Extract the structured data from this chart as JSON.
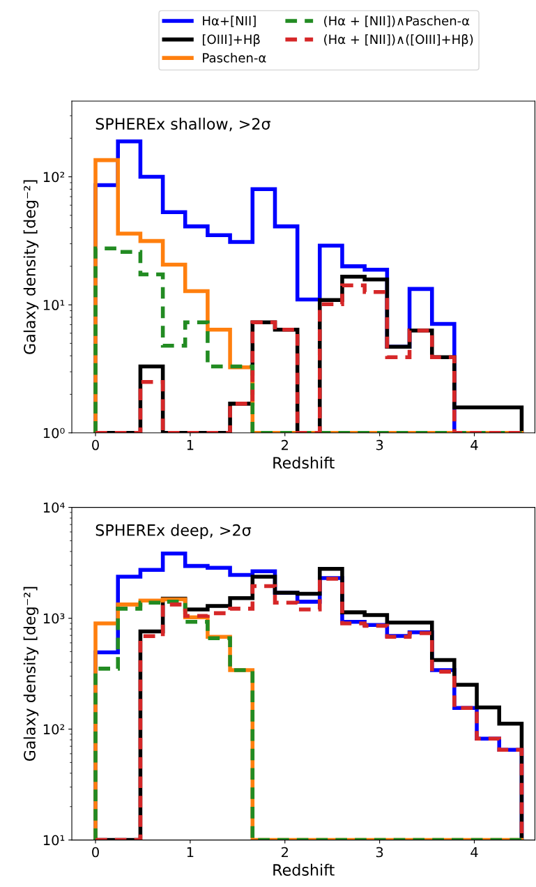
{
  "chart_data": [
    {
      "type": "histogram",
      "xlabel": "Redshift",
      "ylabel": "Galaxy density [deg⁻²]",
      "annotations": [
        "SPHEREx shallow, >2σ"
      ],
      "log": "y",
      "legend": "top",
      "grid": false,
      "bins": [
        0,
        0.237,
        0.474,
        0.711,
        0.947,
        1.184,
        1.421,
        1.658,
        1.895,
        2.132,
        2.368,
        2.605,
        2.842,
        3.079,
        3.316,
        3.553,
        3.789,
        4.026,
        4.263,
        4.5
      ],
      "xlim": [
        -0.25,
        4.64
      ],
      "xticks": [
        0,
        1,
        2,
        3,
        4
      ],
      "ylim": [
        1,
        390
      ],
      "yticks": [
        {
          "value": 1,
          "label": "10⁰"
        },
        {
          "value": 10,
          "label": "10¹"
        },
        {
          "value": 100,
          "label": "10²"
        }
      ],
      "series": [
        {
          "name": "Hα+[NII]",
          "color": "#0000ff",
          "line_style": "solid",
          "values": [
            86,
            189,
            100,
            53,
            41,
            35,
            31,
            80,
            41,
            11,
            29,
            20,
            18.8,
            4.7,
            13.3,
            7.1,
            null,
            null,
            null
          ]
        },
        {
          "name": "[OIII]+Hβ",
          "color": "#000000",
          "line_style": "solid",
          "values": [
            null,
            null,
            3.3,
            null,
            null,
            null,
            1.69,
            7.3,
            6.4,
            null,
            10.9,
            16.6,
            15.8,
            4.7,
            6.3,
            3.9,
            1.58,
            1.58,
            1.58
          ]
        },
        {
          "name": "Paschen-α",
          "color": "#ff7f0e",
          "line_style": "solid",
          "values": [
            135,
            36,
            31.5,
            20.6,
            12.8,
            6.4,
            3.25,
            null,
            null,
            null,
            null,
            null,
            null,
            null,
            null,
            null,
            null,
            null,
            null
          ]
        },
        {
          "name": "(Hα + [NII])∧Paschen-α",
          "color": "#228b22",
          "line_style": "dashed",
          "values": [
            27.6,
            25.9,
            17.3,
            4.8,
            7.3,
            3.3,
            3.3,
            null,
            null,
            null,
            null,
            null,
            null,
            null,
            null,
            null,
            null,
            null,
            null
          ]
        },
        {
          "name": "(Hα + [NII])∧([OIII]+Hβ)",
          "color": "#d62728",
          "line_style": "dashed",
          "values": [
            null,
            null,
            2.5,
            null,
            null,
            null,
            1.69,
            7.3,
            6.4,
            null,
            10.1,
            14.2,
            12.6,
            3.9,
            6.3,
            3.9,
            null,
            null,
            null
          ]
        }
      ]
    },
    {
      "type": "histogram",
      "xlabel": "Redshift",
      "ylabel": "Galaxy density [deg⁻²]",
      "annotations": [
        "SPHEREx deep, >2σ"
      ],
      "log": "y",
      "grid": false,
      "bins": [
        0,
        0.237,
        0.474,
        0.711,
        0.947,
        1.184,
        1.421,
        1.658,
        1.895,
        2.132,
        2.368,
        2.605,
        2.842,
        3.079,
        3.316,
        3.553,
        3.789,
        4.026,
        4.263,
        4.5
      ],
      "xlim": [
        -0.25,
        4.64
      ],
      "xticks": [
        0,
        1,
        2,
        3,
        4
      ],
      "ylim": [
        10,
        10000
      ],
      "yticks": [
        {
          "value": 10,
          "label": "10¹"
        },
        {
          "value": 100,
          "label": "10²"
        },
        {
          "value": 1000,
          "label": "10³"
        },
        {
          "value": 10000,
          "label": "10⁴"
        }
      ],
      "series": [
        {
          "color": "#0000ff",
          "line_style": "solid",
          "values": [
            493,
            2370,
            2730,
            3840,
            2960,
            2850,
            2460,
            2650,
            1700,
            1410,
            2300,
            927,
            870,
            693,
            747,
            340,
            155,
            82,
            65
          ]
        },
        {
          "color": "#000000",
          "line_style": "solid",
          "values": [
            null,
            null,
            760,
            1500,
            1200,
            1290,
            1520,
            2370,
            1700,
            1660,
            2790,
            1130,
            1070,
            915,
            915,
            420,
            251,
            157,
            112
          ]
        },
        {
          "color": "#ff7f0e",
          "line_style": "solid",
          "values": [
            898,
            1330,
            1445,
            1480,
            1020,
            680,
            340,
            null,
            null,
            null,
            null,
            null,
            null,
            null,
            null,
            null,
            null,
            null,
            null
          ]
        },
        {
          "color": "#228b22",
          "line_style": "dashed",
          "values": [
            351,
            1220,
            1380,
            1410,
            927,
            661,
            340,
            null,
            null,
            null,
            null,
            null,
            null,
            null,
            null,
            null,
            null,
            null,
            null
          ]
        },
        {
          "color": "#d62728",
          "line_style": "dashed",
          "values": [
            null,
            null,
            689,
            1330,
            1050,
            1110,
            1220,
            1950,
            1380,
            1200,
            2270,
            898,
            855,
            680,
            733,
            330,
            155,
            82,
            65
          ]
        }
      ]
    }
  ]
}
